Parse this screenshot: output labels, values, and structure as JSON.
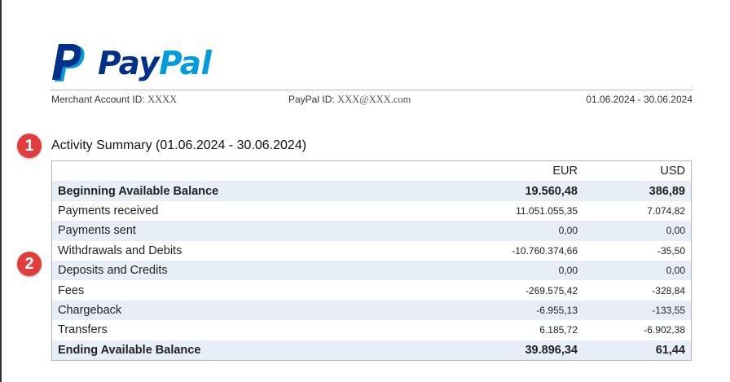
{
  "logo": {
    "pay": "Pay",
    "pal": "Pal"
  },
  "header": {
    "merchant_label": "Merchant Account ID:",
    "merchant_value": "XXXX",
    "paypal_label": "PayPal ID:",
    "paypal_value": "XXX@XXX.com",
    "date_range": "01.06.2024 - 30.06.2024"
  },
  "badges": [
    "1",
    "2"
  ],
  "summary": {
    "title": "Activity Summary (01.06.2024 - 30.06.2024)",
    "currencies": [
      "EUR",
      "USD"
    ],
    "rows": [
      {
        "label": "Beginning Available Balance",
        "eur": "19.560,48",
        "usd": "386,89"
      },
      {
        "label": "Payments received",
        "eur": "11.051.055,35",
        "usd": "7.074,82"
      },
      {
        "label": "Payments sent",
        "eur": "0,00",
        "usd": "0,00"
      },
      {
        "label": "Withdrawals and Debits",
        "eur": "-10.760.374,66",
        "usd": "-35,50"
      },
      {
        "label": "Deposits and Credits",
        "eur": "0,00",
        "usd": "0,00"
      },
      {
        "label": "Fees",
        "eur": "-269.575,42",
        "usd": "-328,84"
      },
      {
        "label": "Chargeback",
        "eur": "-6.955,13",
        "usd": "-133,55"
      },
      {
        "label": "Transfers",
        "eur": "6.185,72",
        "usd": "-6.902,38"
      },
      {
        "label": "Ending Available Balance",
        "eur": "39.896,34",
        "usd": "61,44"
      }
    ]
  },
  "colors": {
    "brand_dark": "#003087",
    "brand_light": "#009cde",
    "badge": "#e23c3c",
    "row_alt": "#e8eef7"
  }
}
